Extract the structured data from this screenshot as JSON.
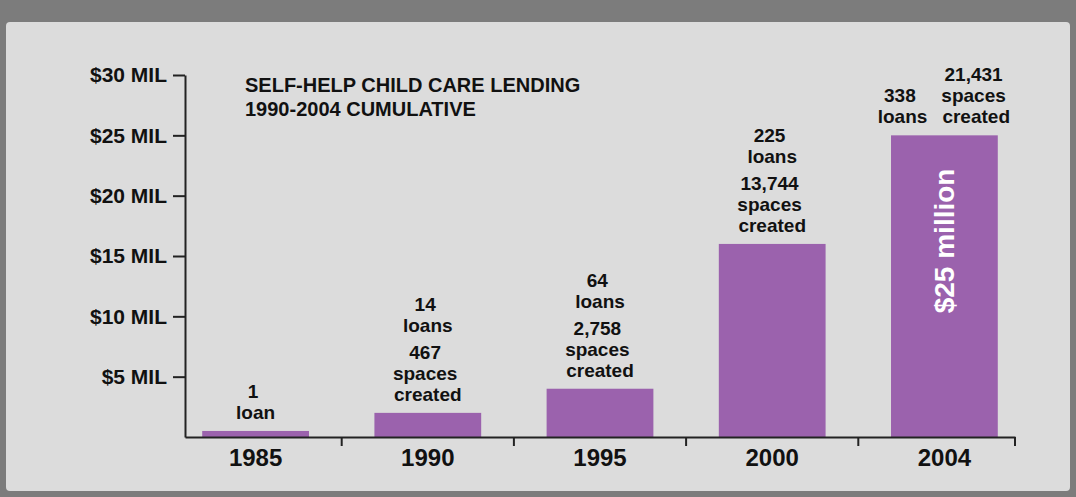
{
  "chart_data": {
    "type": "bar",
    "title": "SELF-HELP CHILD CARE LENDING",
    "subtitle": "1990-2004 CUMULATIVE",
    "categories": [
      "1985",
      "1990",
      "1995",
      "2000",
      "2004"
    ],
    "values": [
      0.5,
      2,
      4,
      16,
      25
    ],
    "value_labels": [
      null,
      null,
      null,
      null,
      "$25 million"
    ],
    "color": "#9b62ad",
    "ylim": [
      0,
      30
    ],
    "yticks": [
      {
        "value": 5,
        "label": "$5 MIL"
      },
      {
        "value": 10,
        "label": "$10 MIL"
      },
      {
        "value": 15,
        "label": "$15 MIL"
      },
      {
        "value": 20,
        "label": "$20 MIL"
      },
      {
        "value": 25,
        "label": "$25 MIL"
      },
      {
        "value": 30,
        "label": "$30 MIL"
      }
    ],
    "grid": false,
    "annotations": [
      {
        "loans": "1 loan"
      },
      {
        "loans": "14 loans",
        "spaces": "467 spaces created"
      },
      {
        "loans": "64 loans",
        "spaces": "2,758 spaces created"
      },
      {
        "loans": "225 loans",
        "spaces": "13,744 spaces created"
      },
      {
        "loans": "338 loans",
        "spaces": "21,431 spaces created"
      }
    ]
  }
}
